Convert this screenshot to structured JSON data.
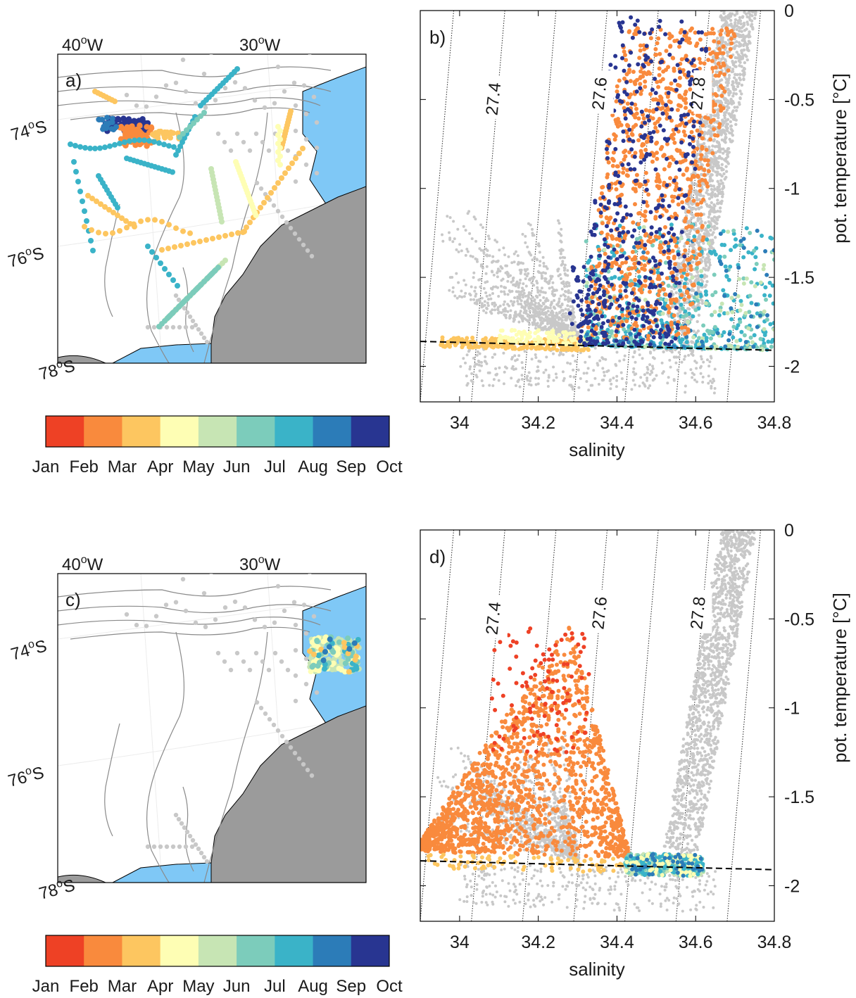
{
  "colorbar": {
    "colors": [
      "#ee4125",
      "#f98a3d",
      "#fdc660",
      "#fefeb4",
      "#c7e5b4",
      "#7cccbb",
      "#3ab3c8",
      "#2c7cb8",
      "#283591"
    ],
    "labels": [
      "Jan",
      "Feb",
      "Mar",
      "Apr",
      "May",
      "Jun",
      "Jul",
      "Aug",
      "Sep",
      "Oct"
    ]
  },
  "colors": {
    "ice_shelf": "#7fc8f6",
    "land": "#9b9b9b",
    "background_profiles": "#c8c8c8",
    "isopycnal": "#222222"
  },
  "maps": [
    {
      "panel_label": "a)",
      "lon_labels": [
        {
          "deg": "40",
          "hemi": "W"
        },
        {
          "deg": "30",
          "hemi": "W"
        }
      ],
      "lat_labels": [
        {
          "deg": "74",
          "hemi": "S"
        },
        {
          "deg": "76",
          "hemi": "S"
        },
        {
          "deg": "78",
          "hemi": "S"
        }
      ]
    },
    {
      "panel_label": "c)",
      "lon_labels": [
        {
          "deg": "40",
          "hemi": "W"
        },
        {
          "deg": "30",
          "hemi": "W"
        }
      ],
      "lat_labels": [
        {
          "deg": "74",
          "hemi": "S"
        },
        {
          "deg": "76",
          "hemi": "S"
        },
        {
          "deg": "78",
          "hemi": "S"
        }
      ]
    }
  ],
  "chart_data": [
    {
      "type": "scatter",
      "panel_label": "b)",
      "xlabel": "salinity",
      "ylabel": "pot. temperature [°C]",
      "xlim": [
        33.9,
        34.8
      ],
      "ylim": [
        -2.2,
        0
      ],
      "xticks": [
        "34",
        "34.2",
        "34.4",
        "34.6",
        "34.8"
      ],
      "yticks": [
        "0",
        "-0.5",
        "-1",
        "-1.5",
        "-2"
      ],
      "freezing_line": {
        "x": [
          33.9,
          34.8
        ],
        "y": [
          -1.86,
          -1.91
        ]
      },
      "isopycnals": [
        {
          "label": "27.4"
        },
        {
          "label": "27.6"
        },
        {
          "label": "27.8"
        }
      ],
      "series_summary": "gray background profiles; colored seal profiles mostly Mar (near freezing, S 33.9–34.3) and Feb/Sep/Aug/Jul (S 34.3–34.8, θ -1.9 to 0)"
    },
    {
      "type": "scatter",
      "panel_label": "d)",
      "xlabel": "salinity",
      "ylabel": "pot. temperature [°C]",
      "xlim": [
        33.9,
        34.8
      ],
      "ylim": [
        -2.2,
        0
      ],
      "xticks": [
        "34",
        "34.2",
        "34.4",
        "34.6",
        "34.8"
      ],
      "yticks": [
        "0",
        "-0.5",
        "-1",
        "-1.5",
        "-2"
      ],
      "freezing_line": {
        "x": [
          33.9,
          34.8
        ],
        "y": [
          -1.86,
          -1.91
        ]
      },
      "isopycnals": [
        {
          "label": "27.4"
        },
        {
          "label": "27.6"
        },
        {
          "label": "27.8"
        }
      ],
      "series_summary": "Feb profiles fill S 33.9–34.4, θ -1.9 to -0.5; Jan warmest near 34.2–34.3; May–Aug cluster near freezing at S 34.4–34.6"
    }
  ]
}
